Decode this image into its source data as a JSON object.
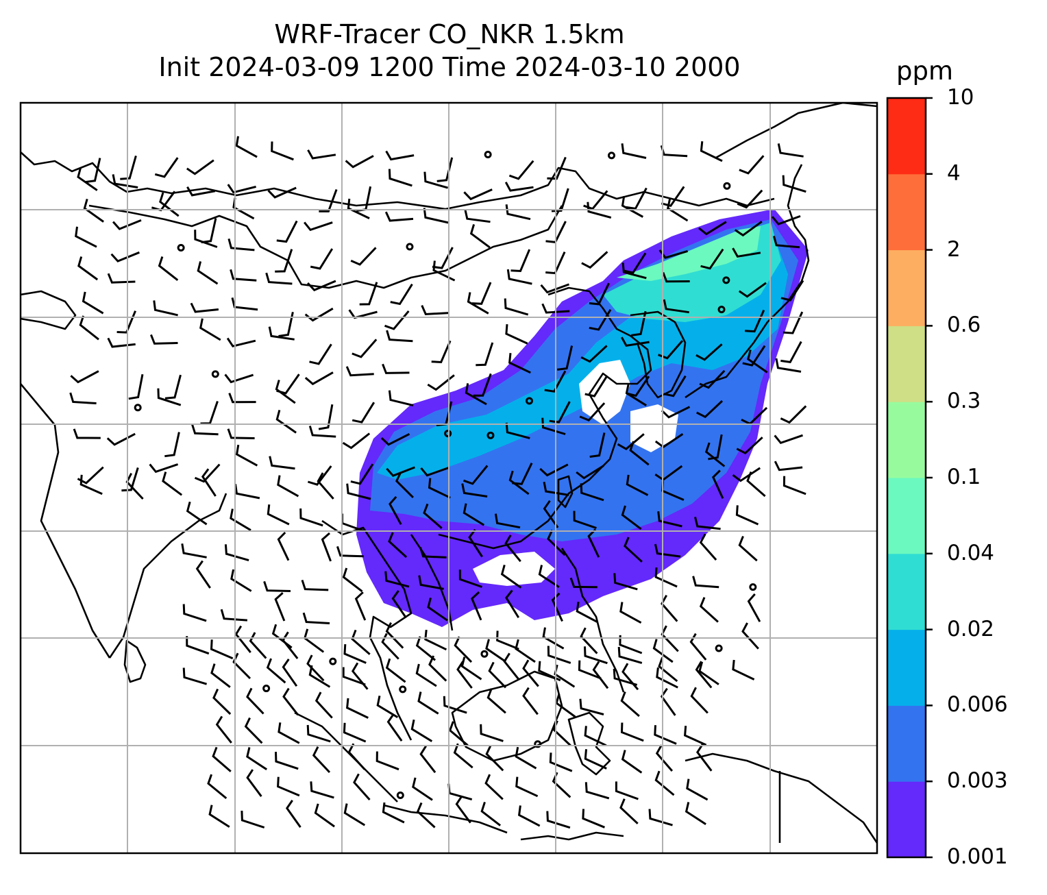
{
  "title": {
    "line1": "WRF-Tracer CO_NKR 1.5km",
    "line2": "Init 2024-03-09 1200 Time 2024-03-10 2000"
  },
  "colorbar": {
    "unit": "ppm",
    "levels": [
      "0.001",
      "0.003",
      "0.006",
      "0.02",
      "0.04",
      "0.1",
      "0.3",
      "0.6",
      "2",
      "4",
      "10"
    ],
    "colors": [
      "#6429fb",
      "#3373f0",
      "#05b0ea",
      "#30ddd2",
      "#6bf9bf",
      "#97fb9e",
      "#cfdf85",
      "#feae61",
      "#fe6e3a",
      "#fe2b15"
    ]
  },
  "map": {
    "gridlines": true,
    "frame_color": "#000000",
    "gridline_color": "#b0b0b0",
    "coastline_color": "#000000"
  }
}
